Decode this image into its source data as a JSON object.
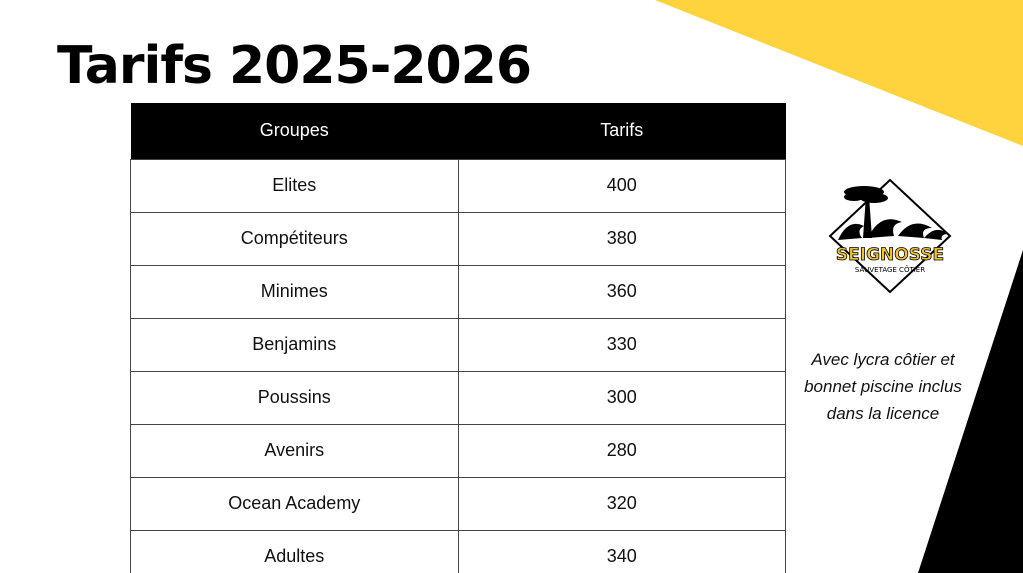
{
  "title": "Tarifs 2025-2026",
  "table": {
    "headers": [
      "Groupes",
      "Tarifs"
    ],
    "rows": [
      {
        "group": "Elites",
        "price": "400"
      },
      {
        "group": "Compétiteurs",
        "price": "380"
      },
      {
        "group": "Minimes",
        "price": "360"
      },
      {
        "group": "Benjamins",
        "price": "330"
      },
      {
        "group": "Poussins",
        "price": "300"
      },
      {
        "group": "Avenirs",
        "price": "280"
      },
      {
        "group": "Ocean Academy",
        "price": "320"
      },
      {
        "group": "Adultes",
        "price": "340"
      }
    ]
  },
  "logo": {
    "name": "SEIGNOSSE",
    "tagline": "SAUVETAGE CÔTIER",
    "icon": "pine-tree-wave-icon"
  },
  "note": {
    "line1": "Avec lycra côtier et",
    "line2": "bonnet piscine inclus",
    "line3": "dans la licence"
  },
  "colors": {
    "accent_yellow": "#FFD33D",
    "header_black": "#000000",
    "logo_yellow": "#F2C230"
  }
}
